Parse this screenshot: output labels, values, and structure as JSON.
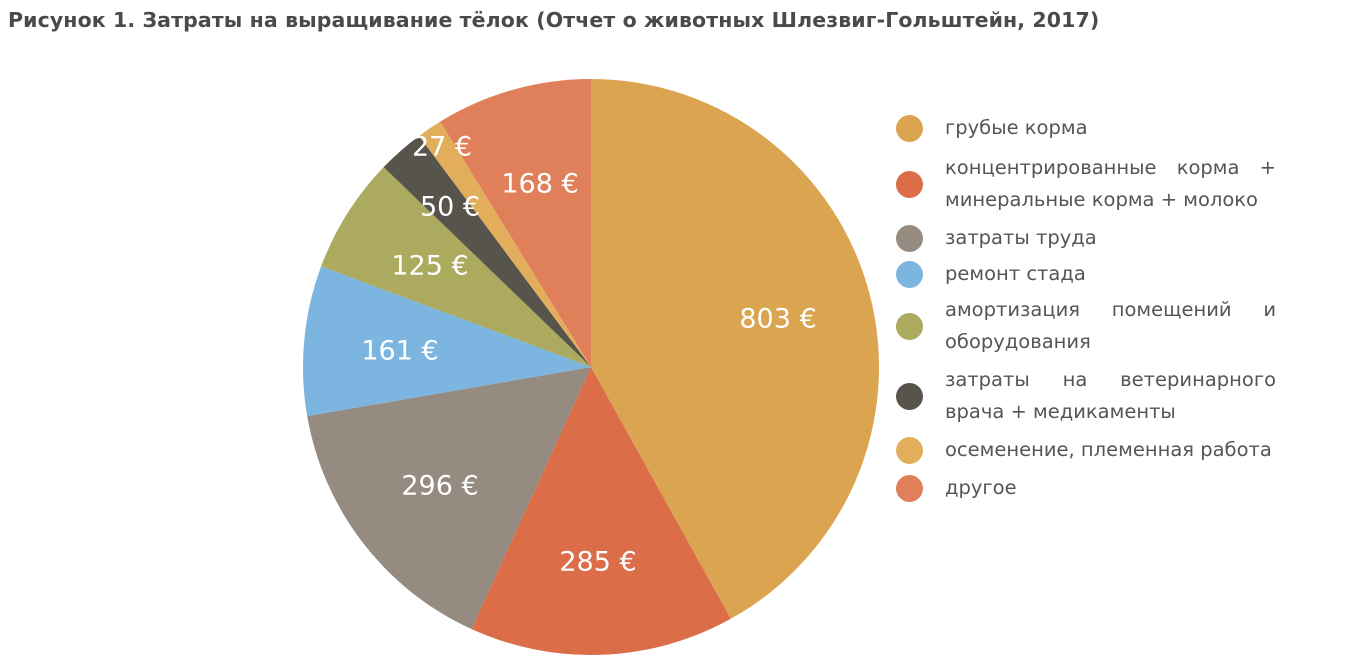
{
  "chart_data": {
    "type": "pie",
    "title": "Рисунок 1. Затраты на выращивание тёлок (Отчет о животных Шлезвиг-Гольштейн, 2017)",
    "unit": "€",
    "legend_position": "right",
    "slices": [
      {
        "name": "грубые корма",
        "value": 803,
        "label": "803 €",
        "color": "#DBA450"
      },
      {
        "name": "концентрированные корма + минеральные корма + молоко",
        "value": 285,
        "label": "285 €",
        "color": "#DB6D49"
      },
      {
        "name": "затраты труда",
        "value": 296,
        "label": "296 €",
        "color": "#958B80"
      },
      {
        "name": "ремонт стада",
        "value": 161,
        "label": "161 €",
        "color": "#7BB5E0"
      },
      {
        "name": "амортизация помещений и оборудования",
        "value": 125,
        "label": "125 €",
        "color": "#ABAA5E"
      },
      {
        "name": "затраты на ветеринарного врача + медикаменты",
        "value": 50,
        "label": "50 €",
        "color": "#57544C"
      },
      {
        "name": "осеменение, племенная работа",
        "value": 27,
        "label": "27 €",
        "color": "#E3AE5C"
      },
      {
        "name": "другое",
        "value": 168,
        "label": "168 €",
        "color": "#E0805A"
      }
    ],
    "legend": [
      "грубые корма",
      "концентрированные корма + минеральные корма + мо­локо",
      "затраты труда",
      "ремонт стада",
      "амортизация помещений и оборудования",
      "затраты на ветеринарного врача + медикаменты",
      "осеменение, племенная ра­бота",
      "другое"
    ]
  }
}
